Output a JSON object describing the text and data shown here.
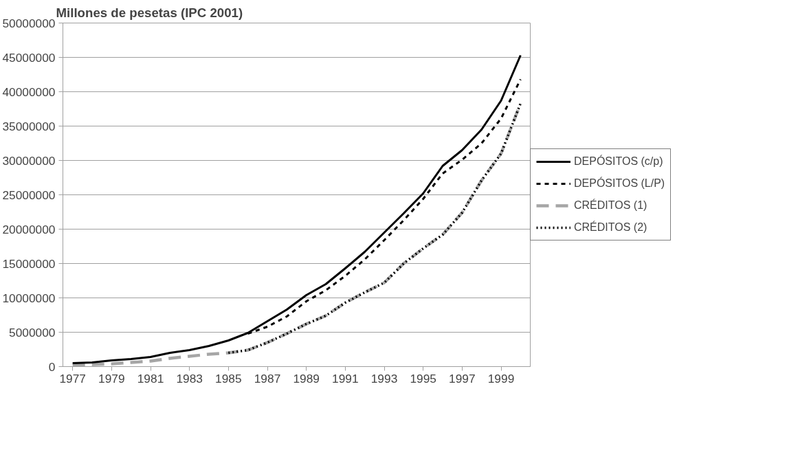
{
  "chart_data": {
    "type": "line",
    "title": "Millones de pesetas (IPC 2001)",
    "categories": [
      "1977",
      null,
      "1979",
      null,
      "1981",
      null,
      "1983",
      null,
      "1985",
      null,
      "1987",
      null,
      "1989",
      null,
      "1991",
      null,
      "1993",
      null,
      "1995",
      null,
      "1997",
      null,
      "1999",
      null
    ],
    "series": [
      {
        "name": "DEPÓSITOS (c/p)",
        "color": "#000000",
        "line_style": "solid",
        "values": [
          500000,
          600000,
          900000,
          1100000,
          1400000,
          2000000,
          2400000,
          3000000,
          3800000,
          4900000,
          6600000,
          8300000,
          10400000,
          12000000,
          14300000,
          16700000,
          19500000,
          22300000,
          25200000,
          29200000,
          31500000,
          34500000,
          38700000,
          45300000
        ]
      },
      {
        "name": "DEPÓSITOS (L/P)",
        "color": "#000000",
        "line_style": "dashed",
        "values": [
          null,
          null,
          null,
          null,
          null,
          null,
          null,
          null,
          null,
          4800000,
          5800000,
          7300000,
          9500000,
          11100000,
          13200000,
          15600000,
          18400000,
          21300000,
          24400000,
          28100000,
          30100000,
          32500000,
          36100000,
          41800000
        ]
      },
      {
        "name": "CRÉDITOS (1)",
        "color": "#a6a6a6",
        "line_style": "dashed",
        "values": [
          200000,
          300000,
          400000,
          600000,
          800000,
          1200000,
          1500000,
          1800000,
          2000000,
          2400000,
          3500000,
          4800000,
          6200000,
          7400000,
          9300000,
          10800000,
          12200000,
          15000000,
          17200000,
          19200000,
          22400000,
          27100000,
          31000000,
          38300000
        ]
      },
      {
        "name": "CRÉDITOS (2)",
        "color": "#000000",
        "line_style": "dotted",
        "values": [
          null,
          null,
          null,
          null,
          null,
          null,
          null,
          null,
          2000000,
          2400000,
          3500000,
          4800000,
          6200000,
          7400000,
          9300000,
          10800000,
          12200000,
          15000000,
          17200000,
          19200000,
          22400000,
          27100000,
          31000000,
          38300000
        ]
      }
    ],
    "ylim": [
      0,
      50000000
    ],
    "yticks": [
      0,
      5000000,
      10000000,
      15000000,
      20000000,
      25000000,
      30000000,
      35000000,
      40000000,
      45000000,
      50000000
    ],
    "grid": "y",
    "legend": "right"
  }
}
